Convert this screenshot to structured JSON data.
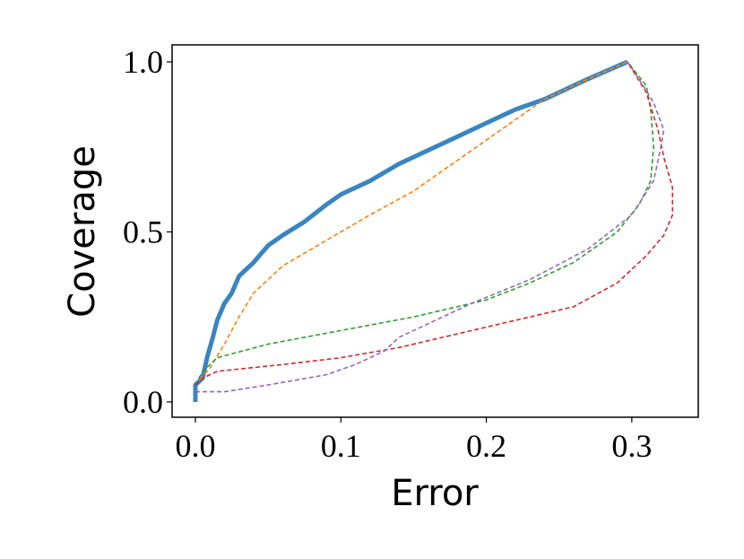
{
  "chart_data": {
    "type": "line",
    "x_label": "Error",
    "y_label": "Coverage",
    "xlim": [
      -0.016,
      0.3457
    ],
    "ylim": [
      -0.045,
      1.05
    ],
    "xticks": [
      {
        "value": 0,
        "label": "0.0"
      },
      0.1,
      0.2,
      0.3
    ],
    "yticks": [
      {
        "value": 0,
        "label": "0.0"
      },
      0.5,
      {
        "value": 1,
        "label": "1.0"
      }
    ],
    "series": [
      {
        "color": "#3a85c0",
        "width": 5,
        "dashed": false,
        "x": [
          0,
          0,
          0.005,
          0.008,
          0.012,
          0.015,
          0.02,
          0.025,
          0.03,
          0.04,
          0.05,
          0.06,
          0.075,
          0.09,
          0.1,
          0.12,
          0.14,
          0.16,
          0.18,
          0.2,
          0.22,
          0.24,
          0.27,
          0.297
        ],
        "values": [
          0,
          0.05,
          0.07,
          0.13,
          0.19,
          0.24,
          0.29,
          0.32,
          0.37,
          0.41,
          0.46,
          0.49,
          0.53,
          0.58,
          0.61,
          0.65,
          0.7,
          0.74,
          0.78,
          0.82,
          0.86,
          0.89,
          0.95,
          1.0
        ]
      },
      {
        "color": "#ff7f0e",
        "width": 1.6,
        "dashed": true,
        "x": [
          0,
          0.01,
          0.02,
          0.03,
          0.04,
          0.05,
          0.06,
          0.08,
          0.1,
          0.12,
          0.15,
          0.18,
          0.21,
          0.24,
          0.27,
          0.297
        ],
        "values": [
          0.05,
          0.1,
          0.17,
          0.25,
          0.32,
          0.36,
          0.4,
          0.45,
          0.5,
          0.55,
          0.62,
          0.71,
          0.8,
          0.89,
          0.95,
          1.0
        ]
      },
      {
        "color": "#2ca02c",
        "width": 1.6,
        "dashed": true,
        "x": [
          0,
          0.005,
          0.015,
          0.05,
          0.1,
          0.15,
          0.2,
          0.23,
          0.26,
          0.29,
          0.305,
          0.313,
          0.315,
          0.313,
          0.31,
          0.297
        ],
        "values": [
          0.05,
          0.09,
          0.13,
          0.17,
          0.21,
          0.25,
          0.3,
          0.35,
          0.41,
          0.5,
          0.58,
          0.65,
          0.75,
          0.86,
          0.93,
          1.0
        ]
      },
      {
        "color": "#d62728",
        "width": 1.6,
        "dashed": true,
        "x": [
          0,
          0.005,
          0.015,
          0.06,
          0.1,
          0.14,
          0.18,
          0.22,
          0.26,
          0.29,
          0.31,
          0.322,
          0.328,
          0.328,
          0.322,
          0.318,
          0.31,
          0.297
        ],
        "values": [
          0.05,
          0.07,
          0.09,
          0.11,
          0.13,
          0.16,
          0.2,
          0.24,
          0.28,
          0.35,
          0.43,
          0.49,
          0.55,
          0.63,
          0.72,
          0.8,
          0.91,
          1.0
        ]
      },
      {
        "color": "#9467bd",
        "width": 1.6,
        "dashed": true,
        "x": [
          0,
          0.02,
          0.05,
          0.09,
          0.11,
          0.13,
          0.14,
          0.16,
          0.19,
          0.23,
          0.27,
          0.3,
          0.315,
          0.32,
          0.322,
          0.315,
          0.305,
          0.297
        ],
        "values": [
          0.03,
          0.03,
          0.05,
          0.08,
          0.11,
          0.15,
          0.19,
          0.23,
          0.29,
          0.36,
          0.45,
          0.55,
          0.65,
          0.75,
          0.8,
          0.88,
          0.95,
          1.0
        ]
      }
    ]
  }
}
